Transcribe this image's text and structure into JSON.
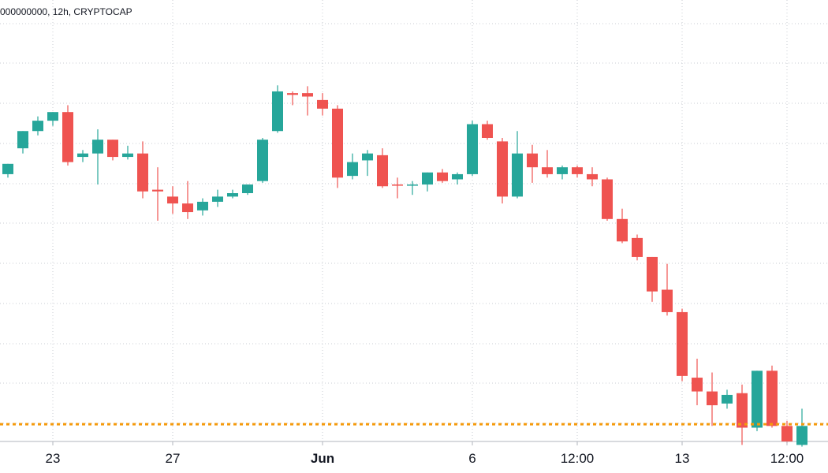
{
  "legend": "000000000, 12h, CRYPTOCAP",
  "chart_data": {
    "type": "candlestick",
    "interval": "12h",
    "source": "CRYPTOCAP",
    "title": "",
    "xlabel": "",
    "ylabel": "",
    "y_axis": "unlabeled",
    "grid": true,
    "x_tick_labels": [
      {
        "label": "23",
        "candle_index": 3,
        "bold": false
      },
      {
        "label": "27",
        "candle_index": 11,
        "bold": false
      },
      {
        "label": "Jun",
        "candle_index": 21,
        "bold": true
      },
      {
        "label": "6",
        "candle_index": 31,
        "bold": false
      },
      {
        "label": "12:00",
        "candle_index": 38,
        "bold": false
      },
      {
        "label": "13",
        "candle_index": 45,
        "bold": false
      },
      {
        "label": "12:00",
        "candle_index": 52,
        "bold": false
      }
    ],
    "price_line": {
      "value": 1.0,
      "color": "#f59a0c",
      "style": "dotted"
    },
    "up_color": "#26a69a",
    "down_color": "#ef5350",
    "y_range": [
      0.8,
      5.92
    ],
    "candles": [
      {
        "o": 3.9,
        "h": 4.01,
        "c": 4.02,
        "l": 3.86
      },
      {
        "o": 4.2,
        "h": 4.38,
        "c": 4.4,
        "l": 4.14
      },
      {
        "o": 4.4,
        "h": 4.57,
        "c": 4.52,
        "l": 4.35
      },
      {
        "o": 4.52,
        "h": 4.61,
        "c": 4.62,
        "l": 4.46
      },
      {
        "o": 4.62,
        "h": 4.7,
        "c": 4.04,
        "l": 4.0
      },
      {
        "o": 4.1,
        "h": 4.18,
        "c": 4.14,
        "l": 4.04
      },
      {
        "o": 4.14,
        "h": 4.42,
        "c": 4.3,
        "l": 3.78
      },
      {
        "o": 4.3,
        "h": 4.26,
        "c": 4.1,
        "l": 4.06
      },
      {
        "o": 4.1,
        "h": 4.23,
        "c": 4.14,
        "l": 4.07
      },
      {
        "o": 4.14,
        "h": 4.28,
        "c": 3.7,
        "l": 3.62
      },
      {
        "o": 3.72,
        "h": 3.98,
        "c": 3.7,
        "l": 3.36
      },
      {
        "o": 3.64,
        "h": 3.76,
        "c": 3.56,
        "l": 3.44
      },
      {
        "o": 3.56,
        "h": 3.82,
        "c": 3.46,
        "l": 3.38
      },
      {
        "o": 3.48,
        "h": 3.62,
        "c": 3.58,
        "l": 3.42
      },
      {
        "o": 3.58,
        "h": 3.72,
        "c": 3.64,
        "l": 3.52
      },
      {
        "o": 3.64,
        "h": 3.72,
        "c": 3.68,
        "l": 3.62
      },
      {
        "o": 3.68,
        "h": 3.76,
        "c": 3.78,
        "l": 3.66
      },
      {
        "o": 3.82,
        "h": 4.32,
        "c": 4.3,
        "l": 3.8
      },
      {
        "o": 4.4,
        "h": 4.93,
        "c": 4.86,
        "l": 4.38
      },
      {
        "o": 4.84,
        "h": 4.86,
        "c": 4.82,
        "l": 4.7
      },
      {
        "o": 4.84,
        "h": 4.92,
        "c": 4.8,
        "l": 4.58
      },
      {
        "o": 4.76,
        "h": 4.84,
        "c": 4.66,
        "l": 4.58
      },
      {
        "o": 4.66,
        "h": 4.7,
        "c": 3.86,
        "l": 3.74
      },
      {
        "o": 3.88,
        "h": 4.14,
        "c": 4.04,
        "l": 3.84
      },
      {
        "o": 4.06,
        "h": 4.18,
        "c": 4.14,
        "l": 3.88
      },
      {
        "o": 4.12,
        "h": 4.2,
        "c": 3.76,
        "l": 3.74
      },
      {
        "o": 3.78,
        "h": 3.86,
        "c": 3.77,
        "l": 3.62
      },
      {
        "o": 3.77,
        "h": 3.82,
        "c": 3.78,
        "l": 3.66
      },
      {
        "o": 3.78,
        "h": 3.9,
        "c": 3.92,
        "l": 3.7
      },
      {
        "o": 3.92,
        "h": 3.96,
        "c": 3.82,
        "l": 3.8
      },
      {
        "o": 3.84,
        "h": 3.92,
        "c": 3.9,
        "l": 3.78
      },
      {
        "o": 3.9,
        "h": 4.52,
        "c": 4.48,
        "l": 3.88
      },
      {
        "o": 4.48,
        "h": 4.52,
        "c": 4.32,
        "l": 4.3
      },
      {
        "o": 4.28,
        "h": 4.32,
        "c": 3.64,
        "l": 3.56
      },
      {
        "o": 3.64,
        "h": 4.4,
        "c": 4.14,
        "l": 3.62
      },
      {
        "o": 4.14,
        "h": 4.24,
        "c": 3.98,
        "l": 3.8
      },
      {
        "o": 3.98,
        "h": 4.18,
        "c": 3.9,
        "l": 3.86
      },
      {
        "o": 3.9,
        "h": 4.0,
        "c": 3.98,
        "l": 3.84
      },
      {
        "o": 3.98,
        "h": 4.0,
        "c": 3.9,
        "l": 3.86
      },
      {
        "o": 3.9,
        "h": 3.98,
        "c": 3.84,
        "l": 3.76
      },
      {
        "o": 3.84,
        "h": 3.86,
        "c": 3.38,
        "l": 3.36
      },
      {
        "o": 3.38,
        "h": 3.5,
        "c": 3.12,
        "l": 3.1
      },
      {
        "o": 3.16,
        "h": 3.2,
        "c": 2.94,
        "l": 2.9
      },
      {
        "o": 2.94,
        "h": 2.9,
        "c": 2.54,
        "l": 2.42
      },
      {
        "o": 2.56,
        "h": 2.86,
        "c": 2.3,
        "l": 2.26
      },
      {
        "o": 2.3,
        "h": 2.34,
        "c": 1.56,
        "l": 1.5
      },
      {
        "o": 1.54,
        "h": 1.76,
        "c": 1.38,
        "l": 1.22
      },
      {
        "o": 1.38,
        "h": 1.6,
        "c": 1.22,
        "l": 0.98
      },
      {
        "o": 1.24,
        "h": 1.4,
        "c": 1.34,
        "l": 1.18
      },
      {
        "o": 1.36,
        "h": 1.46,
        "c": 0.96,
        "l": 0.76
      },
      {
        "o": 0.96,
        "h": 1.62,
        "c": 1.62,
        "l": 0.92
      },
      {
        "o": 1.62,
        "h": 1.68,
        "c": 0.98,
        "l": 0.96
      },
      {
        "o": 0.98,
        "h": 1.04,
        "c": 0.8,
        "l": 0.78
      },
      {
        "o": 0.76,
        "h": 1.18,
        "c": 0.98,
        "l": 0.74
      }
    ]
  }
}
